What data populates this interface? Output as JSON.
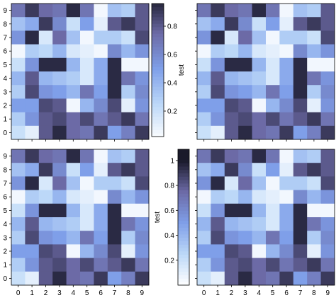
{
  "chart_data": {
    "type": "heatmap",
    "subplots": [
      {
        "name": "top-left",
        "x_tick_labels": false,
        "y_tick_labels": true
      },
      {
        "name": "top-right",
        "x_tick_labels": false,
        "y_tick_labels": false
      },
      {
        "name": "bottom-left",
        "x_tick_labels": true,
        "y_tick_labels": true
      },
      {
        "name": "bottom-right",
        "x_tick_labels": true,
        "y_tick_labels": false
      }
    ],
    "x_ticks": [
      "0",
      "1",
      "2",
      "3",
      "4",
      "5",
      "6",
      "7",
      "8",
      "9"
    ],
    "y_ticks": [
      "0",
      "1",
      "2",
      "3",
      "4",
      "5",
      "6",
      "7",
      "8",
      "9"
    ],
    "shared_values_rows_top_to_bottom": [
      [
        0.7,
        0.9,
        0.75,
        0.7,
        0.95,
        0.7,
        0.05,
        0.35,
        0.3,
        0.8
      ],
      [
        0.35,
        0.45,
        0.9,
        0.6,
        0.2,
        0.5,
        0.1,
        0.8,
        0.9,
        0.8
      ],
      [
        0.55,
        0.95,
        0.15,
        0.75,
        0.35,
        0.05,
        0.3,
        0.3,
        0.2,
        0.85
      ],
      [
        0.05,
        0.3,
        0.25,
        0.4,
        0.15,
        0.1,
        0.05,
        0.6,
        0.4,
        0.55
      ],
      [
        0.2,
        0.55,
        0.95,
        0.95,
        0.4,
        0.15,
        0.45,
        0.95,
        0.05,
        0.05
      ],
      [
        0.4,
        0.8,
        0.4,
        0.35,
        0.3,
        0.15,
        0.45,
        0.95,
        0.7,
        0.55
      ],
      [
        0.3,
        0.85,
        0.55,
        0.5,
        0.4,
        0.7,
        0.5,
        0.95,
        0.3,
        0.6
      ],
      [
        0.5,
        0.5,
        0.85,
        0.8,
        0.05,
        0.4,
        0.6,
        0.85,
        0.1,
        0.55
      ],
      [
        0.3,
        0.55,
        0.8,
        0.85,
        0.75,
        0.85,
        0.7,
        0.8,
        0.9,
        0.7
      ],
      [
        0.2,
        0.1,
        0.8,
        0.95,
        0.75,
        0.7,
        0.9,
        0.5,
        0.65,
        0.9
      ]
    ],
    "colorbars": [
      {
        "name": "right-colorbar",
        "label": "test",
        "ticks": [
          "0.2",
          "0.4",
          "0.6",
          "0.8"
        ],
        "tick_values": [
          0.2,
          0.4,
          0.6,
          0.8
        ],
        "range": [
          0.02,
          0.96
        ]
      },
      {
        "name": "center-colorbar",
        "label": "test",
        "ticks": [
          "0.2",
          "0.4",
          "0.6",
          "0.8",
          "1"
        ],
        "tick_values": [
          0.2,
          0.4,
          0.6,
          0.8,
          1.0
        ],
        "range": [
          0.0,
          1.09
        ]
      }
    ],
    "colormap": [
      "#ffffff",
      "#bcd8f8",
      "#7f9fe9",
      "#6c6aa6",
      "#1a1a2b"
    ]
  }
}
